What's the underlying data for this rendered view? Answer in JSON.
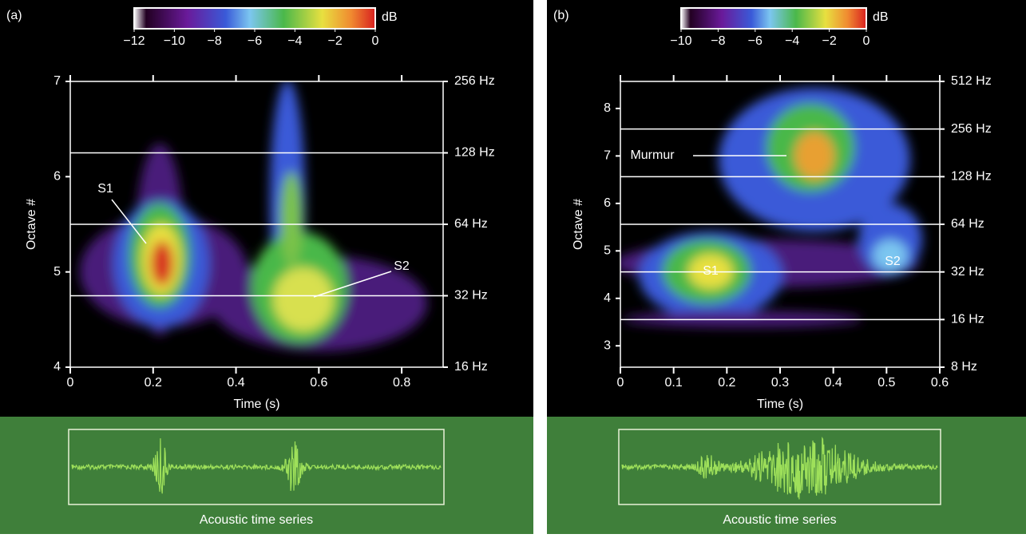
{
  "chart_data": [
    {
      "type": "spectrogram",
      "panel_label": "(a)",
      "colorbar_label": "dB",
      "colorbar_ticks": [
        {
          "value": -12,
          "label": "−12"
        },
        {
          "value": -10,
          "label": "−10"
        },
        {
          "value": -8,
          "label": "−8"
        },
        {
          "value": -6,
          "label": "−6"
        },
        {
          "value": -4,
          "label": "−4"
        },
        {
          "value": -2,
          "label": "−2"
        },
        0
      ],
      "xlabel": "Time (s)",
      "ylabel": "Octave #",
      "xlim": [
        0,
        0.9
      ],
      "xticks": [
        0,
        0.2,
        0.4,
        0.6,
        0.8
      ],
      "ylim": [
        4,
        7
      ],
      "yticks": [
        4,
        5,
        6,
        7
      ],
      "y2lim": [
        16,
        256
      ],
      "y2_log": true,
      "y2ticks": [
        {
          "value": 16,
          "label": "16 Hz"
        },
        {
          "value": 32,
          "label": "32 Hz"
        },
        {
          "value": 64,
          "label": "64 Hz"
        },
        {
          "value": 128,
          "label": "128 Hz"
        },
        {
          "value": 256,
          "label": "256 Hz"
        }
      ],
      "grid": true,
      "annotations": [
        {
          "text": "S1"
        },
        {
          "text": "S2"
        }
      ],
      "bottom_label": "Acoustic time series"
    },
    {
      "type": "spectrogram",
      "panel_label": "(b)",
      "colorbar_label": "dB",
      "colorbar_ticks": [
        {
          "value": -10,
          "label": "−10"
        },
        {
          "value": -8,
          "label": "−8"
        },
        {
          "value": -6,
          "label": "−6"
        },
        {
          "value": -4,
          "label": "−4"
        },
        {
          "value": -2,
          "label": "−2"
        },
        0
      ],
      "xlabel": "Time (s)",
      "ylabel": "Octave #",
      "xlim": [
        0,
        0.6
      ],
      "xticks": [
        0,
        0.1,
        0.2,
        0.3,
        0.4,
        0.5,
        0.6
      ],
      "ylim": [
        2.55,
        8.57
      ],
      "yticks": [
        3,
        4,
        5,
        6,
        7,
        8
      ],
      "y2lim": [
        8,
        512
      ],
      "y2_log": true,
      "y2ticks": [
        {
          "value": 8,
          "label": "8 Hz"
        },
        {
          "value": 16,
          "label": "16 Hz"
        },
        {
          "value": 32,
          "label": "32 Hz"
        },
        {
          "value": 64,
          "label": "64 Hz"
        },
        {
          "value": 128,
          "label": "128 Hz"
        },
        {
          "value": 256,
          "label": "256 Hz"
        },
        {
          "value": 512,
          "label": "512 Hz"
        }
      ],
      "grid": true,
      "annotations": [
        {
          "text": "Murmur"
        },
        {
          "text": "S1"
        },
        {
          "text": "S2"
        }
      ],
      "bottom_label": "Acoustic time series"
    }
  ]
}
